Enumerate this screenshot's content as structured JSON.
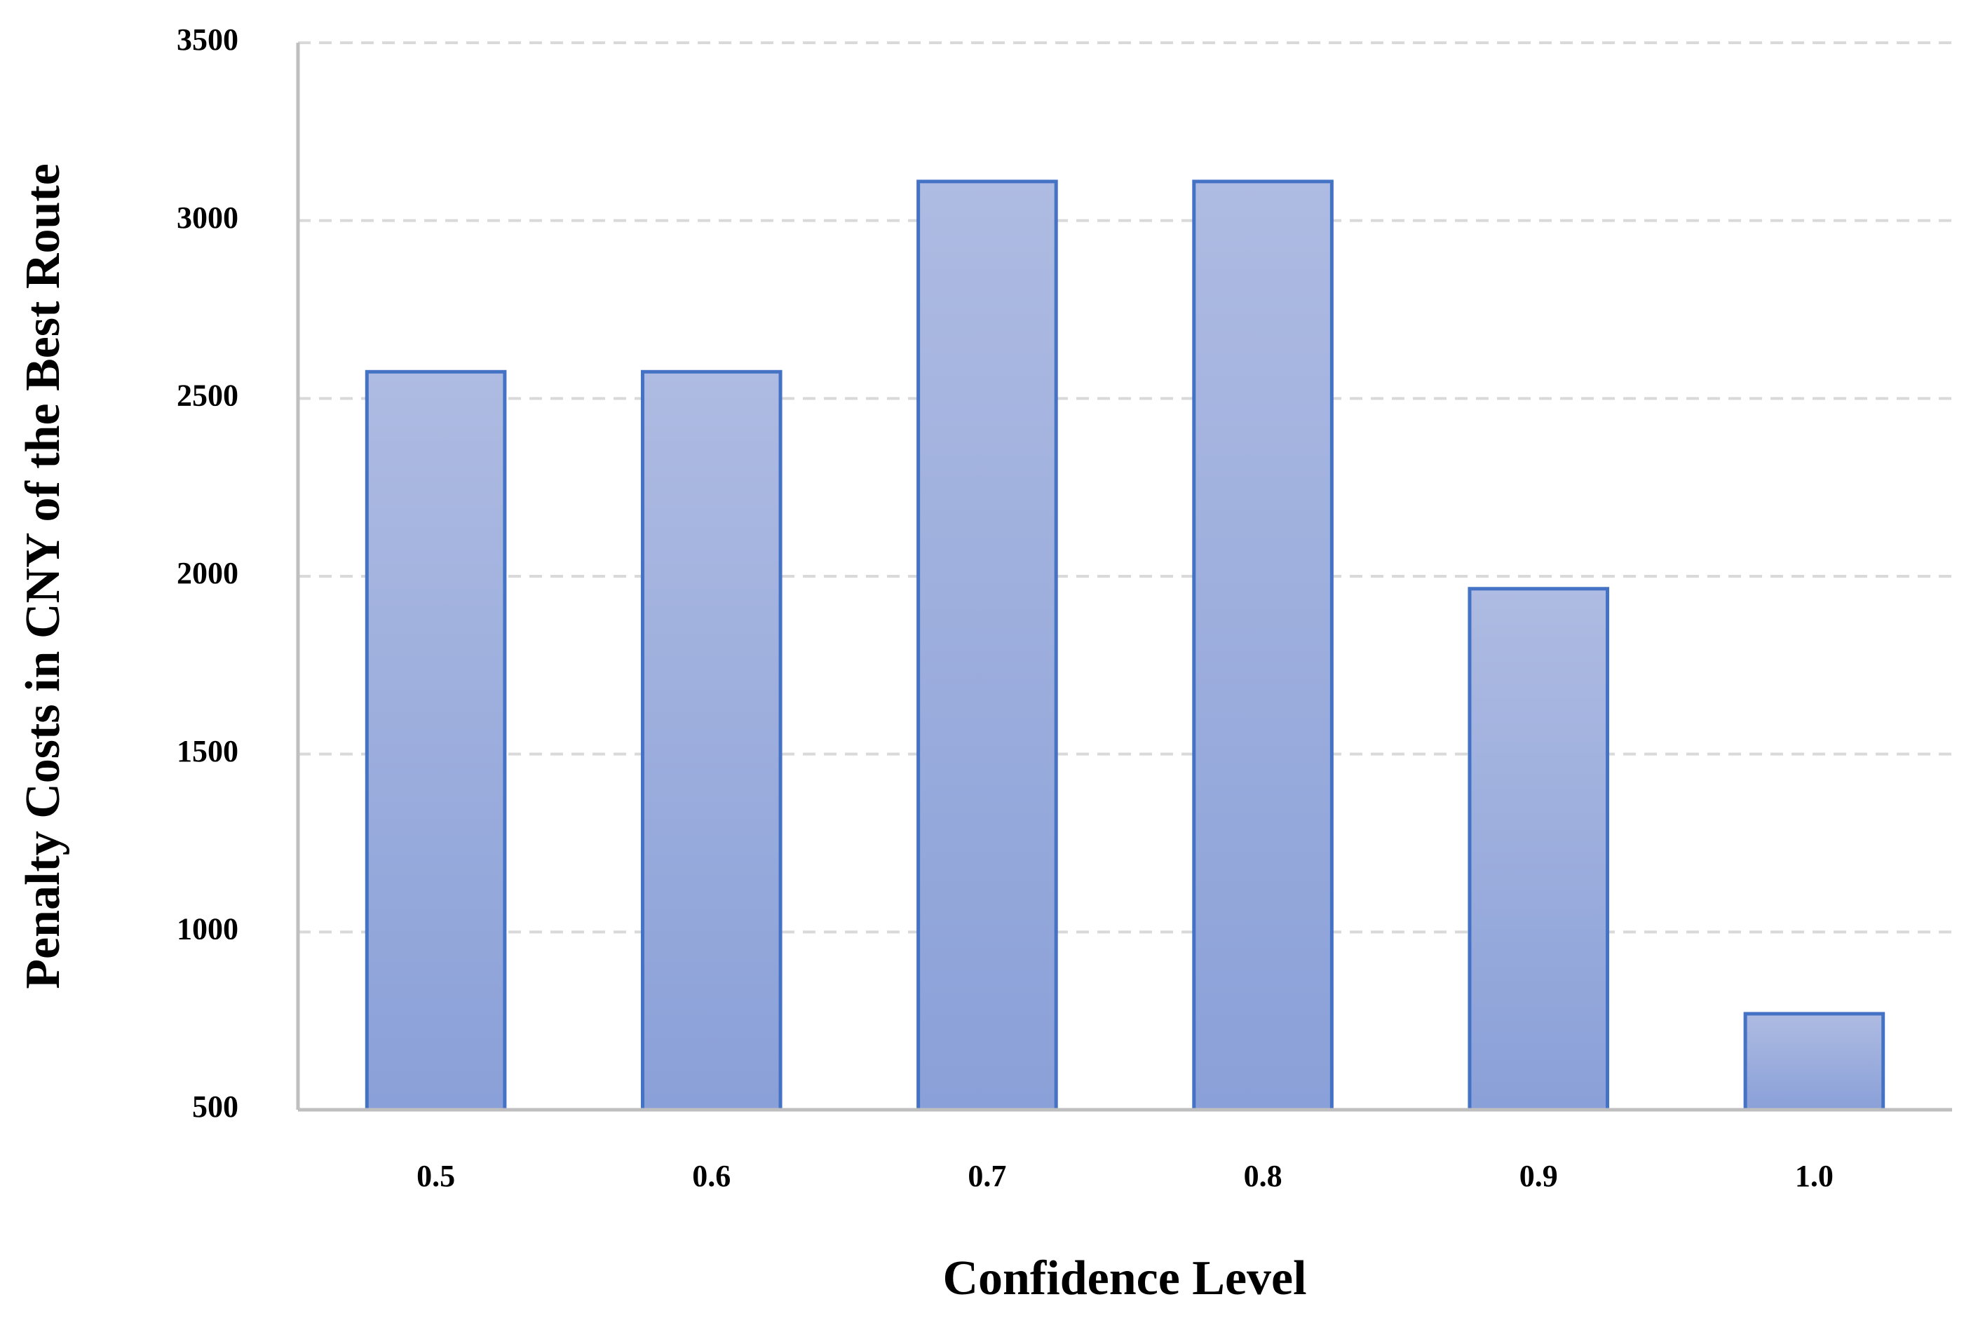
{
  "chart_data": {
    "type": "bar",
    "x_label": "Confidence Level",
    "y_label": "Penalty Costs in CNY of the Best Route",
    "categories": [
      "0.5",
      "0.6",
      "0.7",
      "0.8",
      "0.9",
      "1.0"
    ],
    "values": [
      2575,
      2575,
      3110,
      3110,
      1965,
      770
    ],
    "color": "#4472c4",
    "ylim": [
      500,
      3500
    ],
    "yticks": [
      500,
      1000,
      1500,
      2000,
      2500,
      3000,
      3500
    ],
    "grid": true
  }
}
